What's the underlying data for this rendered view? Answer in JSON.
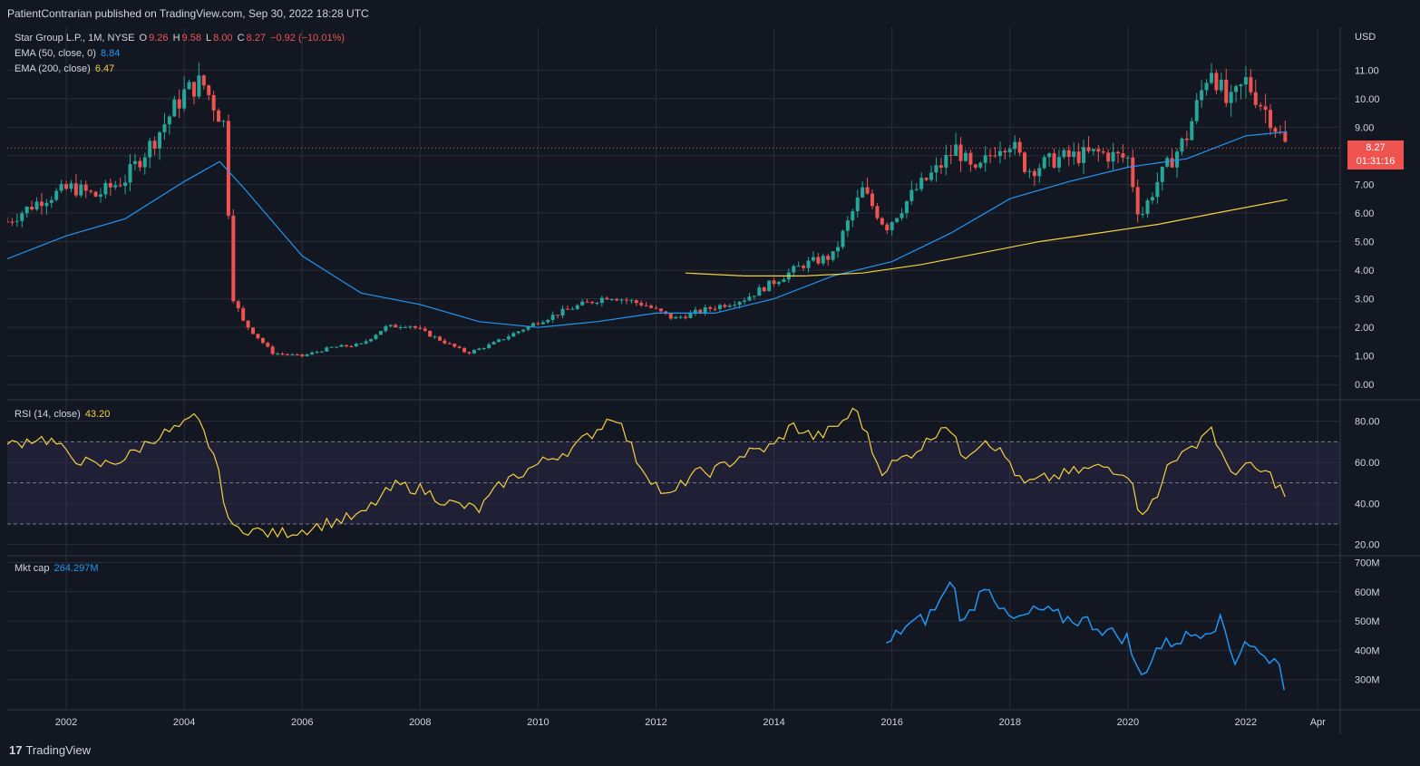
{
  "header": {
    "publisher": "PatientContrarian published on TradingView.com, Sep 30, 2022 18:28 UTC"
  },
  "legend": {
    "symbol": "Star Group L.P., 1M, NYSE",
    "o_label": "O",
    "o_value": "9.26",
    "h_label": "H",
    "h_value": "9.58",
    "l_label": "L",
    "l_value": "8.00",
    "c_label": "C",
    "c_value": "8.27",
    "change": "−0.92 (−10.01%)",
    "ema50_label": "EMA (50, close, 0)",
    "ema50_value": "8.84",
    "ema200_label": "EMA (200, close)",
    "ema200_value": "6.47",
    "rsi_label": "RSI (14, close)",
    "rsi_value": "43.20",
    "mktcap_label": "Mkt cap",
    "mktcap_value": "264.297M"
  },
  "price_tag": {
    "price": "8.27",
    "countdown": "01:31:16"
  },
  "footer": {
    "brand": "TradingView",
    "logo_icon": "tradingview-logo-icon"
  },
  "colors": {
    "bg": "#131722",
    "grid": "#2a2e39",
    "up": "#26a69a",
    "down": "#ef5350",
    "ema50": "#2196f3",
    "ema200": "#f4d03f",
    "rsi": "#f4d03f",
    "mktcap": "#2196f3"
  },
  "chart_data": [
    {
      "type": "candlestick",
      "currency": "USD",
      "xlim": [
        2001.0,
        2023.6
      ],
      "ylim": [
        -0.5,
        12.5
      ],
      "y_ticks": [
        "0.00",
        "1.00",
        "2.00",
        "3.00",
        "4.00",
        "5.00",
        "6.00",
        "7.00",
        "8.00",
        "9.00",
        "10.00",
        "11.00"
      ],
      "x_ticks": [
        "2002",
        "2004",
        "2006",
        "2008",
        "2010",
        "2012",
        "2014",
        "2016",
        "2018",
        "2020",
        "2022",
        "Apr"
      ],
      "price_anchors": [
        [
          2001.0,
          5.7
        ],
        [
          2001.6,
          6.5
        ],
        [
          2002.1,
          6.9
        ],
        [
          2002.5,
          6.6
        ],
        [
          2003.0,
          7.2
        ],
        [
          2003.5,
          8.6
        ],
        [
          2004.0,
          10.2
        ],
        [
          2004.3,
          10.6
        ],
        [
          2004.7,
          9.0
        ],
        [
          2004.8,
          3.2
        ],
        [
          2005.0,
          2.2
        ],
        [
          2005.5,
          1.1
        ],
        [
          2006.0,
          1.0
        ],
        [
          2006.5,
          1.3
        ],
        [
          2007.0,
          1.4
        ],
        [
          2007.4,
          2.0
        ],
        [
          2007.8,
          2.1
        ],
        [
          2008.3,
          1.6
        ],
        [
          2008.8,
          1.1
        ],
        [
          2009.2,
          1.4
        ],
        [
          2009.6,
          1.8
        ],
        [
          2010.0,
          2.2
        ],
        [
          2010.6,
          2.7
        ],
        [
          2011.2,
          3.1
        ],
        [
          2011.8,
          2.8
        ],
        [
          2012.3,
          2.3
        ],
        [
          2012.8,
          2.6
        ],
        [
          2013.5,
          3.0
        ],
        [
          2014.0,
          3.6
        ],
        [
          2014.5,
          4.2
        ],
        [
          2015.0,
          4.5
        ],
        [
          2015.5,
          6.8
        ],
        [
          2015.9,
          5.5
        ],
        [
          2016.4,
          6.8
        ],
        [
          2016.8,
          7.6
        ],
        [
          2017.1,
          8.3
        ],
        [
          2017.4,
          7.3
        ],
        [
          2017.8,
          8.4
        ],
        [
          2018.0,
          8.5
        ],
        [
          2018.3,
          7.5
        ],
        [
          2018.8,
          7.9
        ],
        [
          2019.5,
          8.1
        ],
        [
          2020.0,
          7.9
        ],
        [
          2020.2,
          5.8
        ],
        [
          2020.5,
          7.1
        ],
        [
          2021.0,
          8.7
        ],
        [
          2021.4,
          11.2
        ],
        [
          2021.7,
          9.7
        ],
        [
          2022.0,
          10.6
        ],
        [
          2022.4,
          9.4
        ],
        [
          2022.7,
          8.27
        ]
      ],
      "ema50": [
        [
          2001.0,
          4.4
        ],
        [
          2002.0,
          5.2
        ],
        [
          2003.0,
          5.8
        ],
        [
          2004.0,
          7.1
        ],
        [
          2004.6,
          7.8
        ],
        [
          2005.0,
          6.9
        ],
        [
          2006.0,
          4.5
        ],
        [
          2007.0,
          3.2
        ],
        [
          2008.0,
          2.8
        ],
        [
          2009.0,
          2.2
        ],
        [
          2010.0,
          2.0
        ],
        [
          2011.0,
          2.2
        ],
        [
          2012.0,
          2.5
        ],
        [
          2013.0,
          2.5
        ],
        [
          2014.0,
          3.0
        ],
        [
          2015.0,
          3.8
        ],
        [
          2016.0,
          4.3
        ],
        [
          2017.0,
          5.3
        ],
        [
          2018.0,
          6.5
        ],
        [
          2019.0,
          7.1
        ],
        [
          2020.0,
          7.6
        ],
        [
          2021.0,
          7.9
        ],
        [
          2022.0,
          8.7
        ],
        [
          2022.7,
          8.84
        ]
      ],
      "ema200": [
        [
          2012.5,
          3.9
        ],
        [
          2013.5,
          3.8
        ],
        [
          2014.5,
          3.8
        ],
        [
          2015.5,
          3.9
        ],
        [
          2016.5,
          4.2
        ],
        [
          2017.5,
          4.6
        ],
        [
          2018.5,
          5.0
        ],
        [
          2019.5,
          5.3
        ],
        [
          2020.5,
          5.6
        ],
        [
          2021.5,
          6.0
        ],
        [
          2022.7,
          6.47
        ]
      ]
    },
    {
      "type": "line",
      "name": "RSI (14, close)",
      "ylim": [
        15,
        90
      ],
      "y_ticks": [
        "20.00",
        "40.00",
        "60.00",
        "80.00"
      ],
      "bands": [
        30,
        50,
        70
      ],
      "points": [
        [
          2001.0,
          68
        ],
        [
          2001.5,
          72
        ],
        [
          2001.8,
          70
        ],
        [
          2002.0,
          64
        ],
        [
          2002.5,
          58
        ],
        [
          2003.0,
          62
        ],
        [
          2003.5,
          72
        ],
        [
          2004.0,
          78
        ],
        [
          2004.2,
          82
        ],
        [
          2004.5,
          64
        ],
        [
          2004.8,
          27
        ],
        [
          2005.0,
          28
        ],
        [
          2005.5,
          25
        ],
        [
          2006.0,
          27
        ],
        [
          2006.5,
          31
        ],
        [
          2007.0,
          34
        ],
        [
          2007.3,
          42
        ],
        [
          2007.6,
          49
        ],
        [
          2008.0,
          47
        ],
        [
          2008.5,
          40
        ],
        [
          2009.0,
          37
        ],
        [
          2009.4,
          50
        ],
        [
          2009.8,
          56
        ],
        [
          2010.2,
          62
        ],
        [
          2010.6,
          67
        ],
        [
          2011.0,
          76
        ],
        [
          2011.3,
          84
        ],
        [
          2011.7,
          60
        ],
        [
          2012.2,
          42
        ],
        [
          2012.6,
          54
        ],
        [
          2013.0,
          56
        ],
        [
          2013.5,
          64
        ],
        [
          2014.0,
          68
        ],
        [
          2014.3,
          78
        ],
        [
          2014.7,
          72
        ],
        [
          2015.0,
          76
        ],
        [
          2015.4,
          86
        ],
        [
          2015.8,
          56
        ],
        [
          2016.2,
          62
        ],
        [
          2016.6,
          70
        ],
        [
          2016.9,
          80
        ],
        [
          2017.2,
          63
        ],
        [
          2017.6,
          72
        ],
        [
          2018.0,
          60
        ],
        [
          2018.2,
          49
        ],
        [
          2018.6,
          52
        ],
        [
          2019.2,
          56
        ],
        [
          2019.6,
          58
        ],
        [
          2020.0,
          55
        ],
        [
          2020.2,
          36
        ],
        [
          2020.5,
          42
        ],
        [
          2020.7,
          62
        ],
        [
          2021.0,
          64
        ],
        [
          2021.4,
          78
        ],
        [
          2021.7,
          55
        ],
        [
          2022.0,
          58
        ],
        [
          2022.4,
          54
        ],
        [
          2022.7,
          43.2
        ]
      ]
    },
    {
      "type": "line",
      "name": "Mkt cap",
      "ylim": [
        200,
        720
      ],
      "y_ticks": [
        "300M",
        "400M",
        "500M",
        "600M",
        "700M"
      ],
      "points": [
        [
          2015.9,
          410
        ],
        [
          2016.2,
          480
        ],
        [
          2016.6,
          510
        ],
        [
          2016.9,
          590
        ],
        [
          2017.0,
          660
        ],
        [
          2017.2,
          480
        ],
        [
          2017.6,
          640
        ],
        [
          2017.9,
          520
        ],
        [
          2018.1,
          500
        ],
        [
          2018.5,
          540
        ],
        [
          2018.9,
          510
        ],
        [
          2019.3,
          500
        ],
        [
          2019.7,
          460
        ],
        [
          2020.0,
          440
        ],
        [
          2020.2,
          300
        ],
        [
          2020.5,
          410
        ],
        [
          2020.9,
          440
        ],
        [
          2021.3,
          470
        ],
        [
          2021.6,
          500
        ],
        [
          2021.8,
          360
        ],
        [
          2022.0,
          440
        ],
        [
          2022.3,
          370
        ],
        [
          2022.5,
          380
        ],
        [
          2022.7,
          264.3
        ]
      ]
    }
  ]
}
